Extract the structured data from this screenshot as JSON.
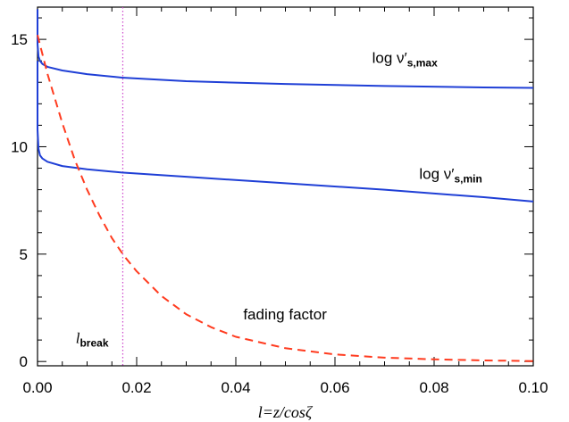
{
  "chart_data": {
    "type": "line",
    "title": "",
    "xlabel": "l=z/cosζ",
    "ylabel": "",
    "xlim": [
      0.0,
      0.1
    ],
    "ylim": [
      -0.2,
      16.5
    ],
    "x_ticks": [
      0.0,
      0.02,
      0.04,
      0.06,
      0.08,
      0.1
    ],
    "x_tick_labels": [
      "0.00",
      "0.02",
      "0.04",
      "0.06",
      "0.08",
      "0.10"
    ],
    "y_ticks": [
      0,
      5,
      10,
      15
    ],
    "y_tick_labels": [
      "0",
      "5",
      "10",
      "15"
    ],
    "grid": false,
    "series": [
      {
        "key": "nu_max",
        "color": "#1f3fd6",
        "style": "solid",
        "x": [
          0.0,
          0.0,
          0.0002,
          0.0005,
          0.001,
          0.002,
          0.005,
          0.01,
          0.017,
          0.03,
          0.05,
          0.07,
          0.09,
          0.1
        ],
        "y": [
          16.4,
          14.8,
          14.2,
          14.0,
          13.85,
          13.72,
          13.55,
          13.38,
          13.22,
          13.05,
          12.92,
          12.83,
          12.76,
          12.74
        ]
      },
      {
        "key": "nu_min",
        "color": "#1f3fd6",
        "style": "solid",
        "x": [
          0.0,
          0.0,
          0.0002,
          0.0005,
          0.001,
          0.002,
          0.005,
          0.01,
          0.017,
          0.03,
          0.05,
          0.07,
          0.09,
          0.1
        ],
        "y": [
          14.0,
          10.8,
          9.9,
          9.6,
          9.45,
          9.3,
          9.1,
          8.95,
          8.8,
          8.6,
          8.3,
          8.0,
          7.65,
          7.45
        ]
      },
      {
        "key": "fading",
        "color": "#ff3b1f",
        "style": "dashed",
        "x": [
          0.0,
          0.002,
          0.005,
          0.0075,
          0.01,
          0.0125,
          0.015,
          0.0175,
          0.02,
          0.025,
          0.03,
          0.035,
          0.04,
          0.05,
          0.06,
          0.07,
          0.08,
          0.09,
          0.1
        ],
        "y": [
          15.2,
          13.4,
          11.1,
          9.4,
          8.0,
          6.8,
          5.75,
          4.9,
          4.2,
          3.05,
          2.2,
          1.6,
          1.15,
          0.62,
          0.33,
          0.18,
          0.1,
          0.05,
          0.02
        ]
      }
    ],
    "vlines": [
      {
        "key": "l_break",
        "x": 0.0172,
        "color": "#cc44cc",
        "style": "dotted"
      }
    ],
    "annotations": [
      {
        "key": "nu_max_label",
        "prefix": "log  ν′",
        "sub": "s,max",
        "x": 0.0675,
        "y": 13.9
      },
      {
        "key": "nu_min_label",
        "prefix": "log  ν′",
        "sub": "s,min",
        "x": 0.077,
        "y": 8.5
      },
      {
        "key": "fading_label",
        "text": "fading factor",
        "x": 0.0415,
        "y": 1.95
      },
      {
        "key": "lbreak_label",
        "prefix": "l",
        "sub": "break",
        "x": 0.0077,
        "y": 0.85
      }
    ]
  }
}
